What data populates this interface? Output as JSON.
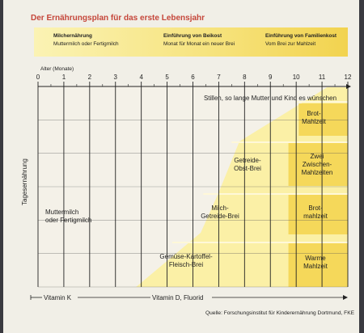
{
  "title": "Der Ernährungsplan für das erste Lebensjahr",
  "phases": [
    {
      "heading": "Milchernährung",
      "text": "Muttermilch oder Fertigmilch"
    },
    {
      "heading": "Einführung von Beikost",
      "text": "Monat für Monat ein neuer Brei"
    },
    {
      "heading": "Einführung von Familienkost",
      "text": "Vom Brei zur Mahlzeit"
    }
  ],
  "axis_title": "Alter (Monate)",
  "side_label": "Tagesernährung",
  "vitamin_k": "Vitamin K",
  "vitamin_d": "Vitamin D, Fluorid",
  "source": "Quelle: Forschungsinstitut für Kinderernährung Dortmund, FKE",
  "colors": {
    "title": "#c5463a",
    "band_light": "#fbf0a6",
    "band_dark": "#f5d85a",
    "grid": "#222222"
  },
  "chart_data": {
    "type": "area",
    "x_ticks": [
      0,
      1,
      2,
      3,
      4,
      5,
      6,
      7,
      8,
      9,
      10,
      11,
      12
    ],
    "xlim": [
      0,
      12
    ],
    "regions": [
      {
        "lines": [
          "Stillen, so lange Mutter und Kind es wünschen"
        ]
      },
      {
        "lines": [
          "Muttermilch",
          "oder Fertigmilch"
        ]
      },
      {
        "lines": [
          "Gemüse-Kartoffel-",
          "Fleisch-Brei"
        ],
        "starts_month": 4
      },
      {
        "lines": [
          "Milch-",
          "Getreide-Brei"
        ],
        "starts_month": 6
      },
      {
        "lines": [
          "Getreide-",
          "Obst-Brei"
        ],
        "starts_month": 7
      },
      {
        "lines": [
          "Warme",
          "Mahlzeit"
        ],
        "starts_month": 10
      },
      {
        "lines": [
          "Brot-",
          "mahlzeit"
        ],
        "starts_month": 10
      },
      {
        "lines": [
          "Zwei",
          "Zwischen-",
          "Mahlzeiten"
        ],
        "starts_month": 10
      },
      {
        "lines": [
          "Brot-",
          "Mahlzeit"
        ],
        "starts_month": 10
      }
    ]
  }
}
